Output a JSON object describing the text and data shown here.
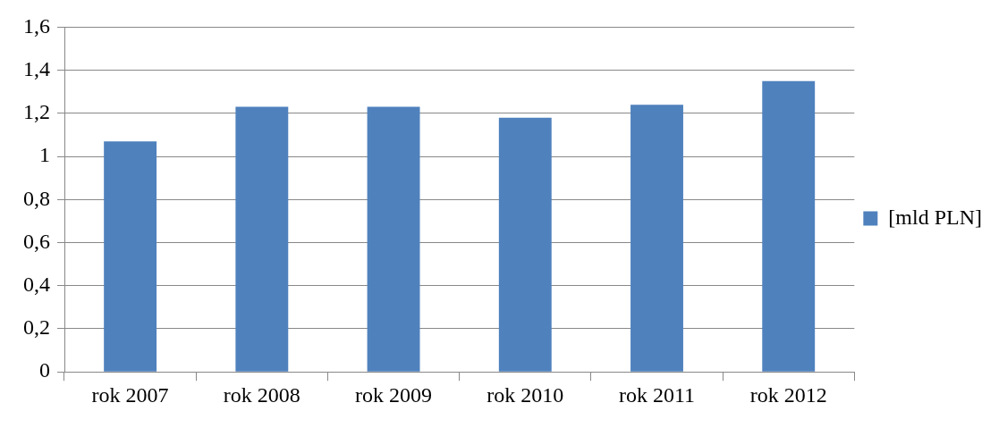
{
  "chart_data": {
    "type": "bar",
    "categories": [
      "rok 2007",
      "rok 2008",
      "rok 2009",
      "rok 2010",
      "rok 2011",
      "rok 2012"
    ],
    "series": [
      {
        "name": "[mld PLN]",
        "color": "#4f81bd",
        "values": [
          1.07,
          1.23,
          1.23,
          1.18,
          1.24,
          1.35
        ]
      }
    ],
    "ylim": [
      0,
      1.6
    ],
    "yticks": [
      {
        "value": 0,
        "label": "0"
      },
      {
        "value": 0.2,
        "label": "0,2"
      },
      {
        "value": 0.4,
        "label": "0,4"
      },
      {
        "value": 0.6,
        "label": "0,6"
      },
      {
        "value": 0.8,
        "label": "0,8"
      },
      {
        "value": 1,
        "label": "1"
      },
      {
        "value": 1.2,
        "label": "1,2"
      },
      {
        "value": 1.4,
        "label": "1,4"
      },
      {
        "value": 1.6,
        "label": "1,6"
      }
    ],
    "grid": "y",
    "legend": "right"
  }
}
